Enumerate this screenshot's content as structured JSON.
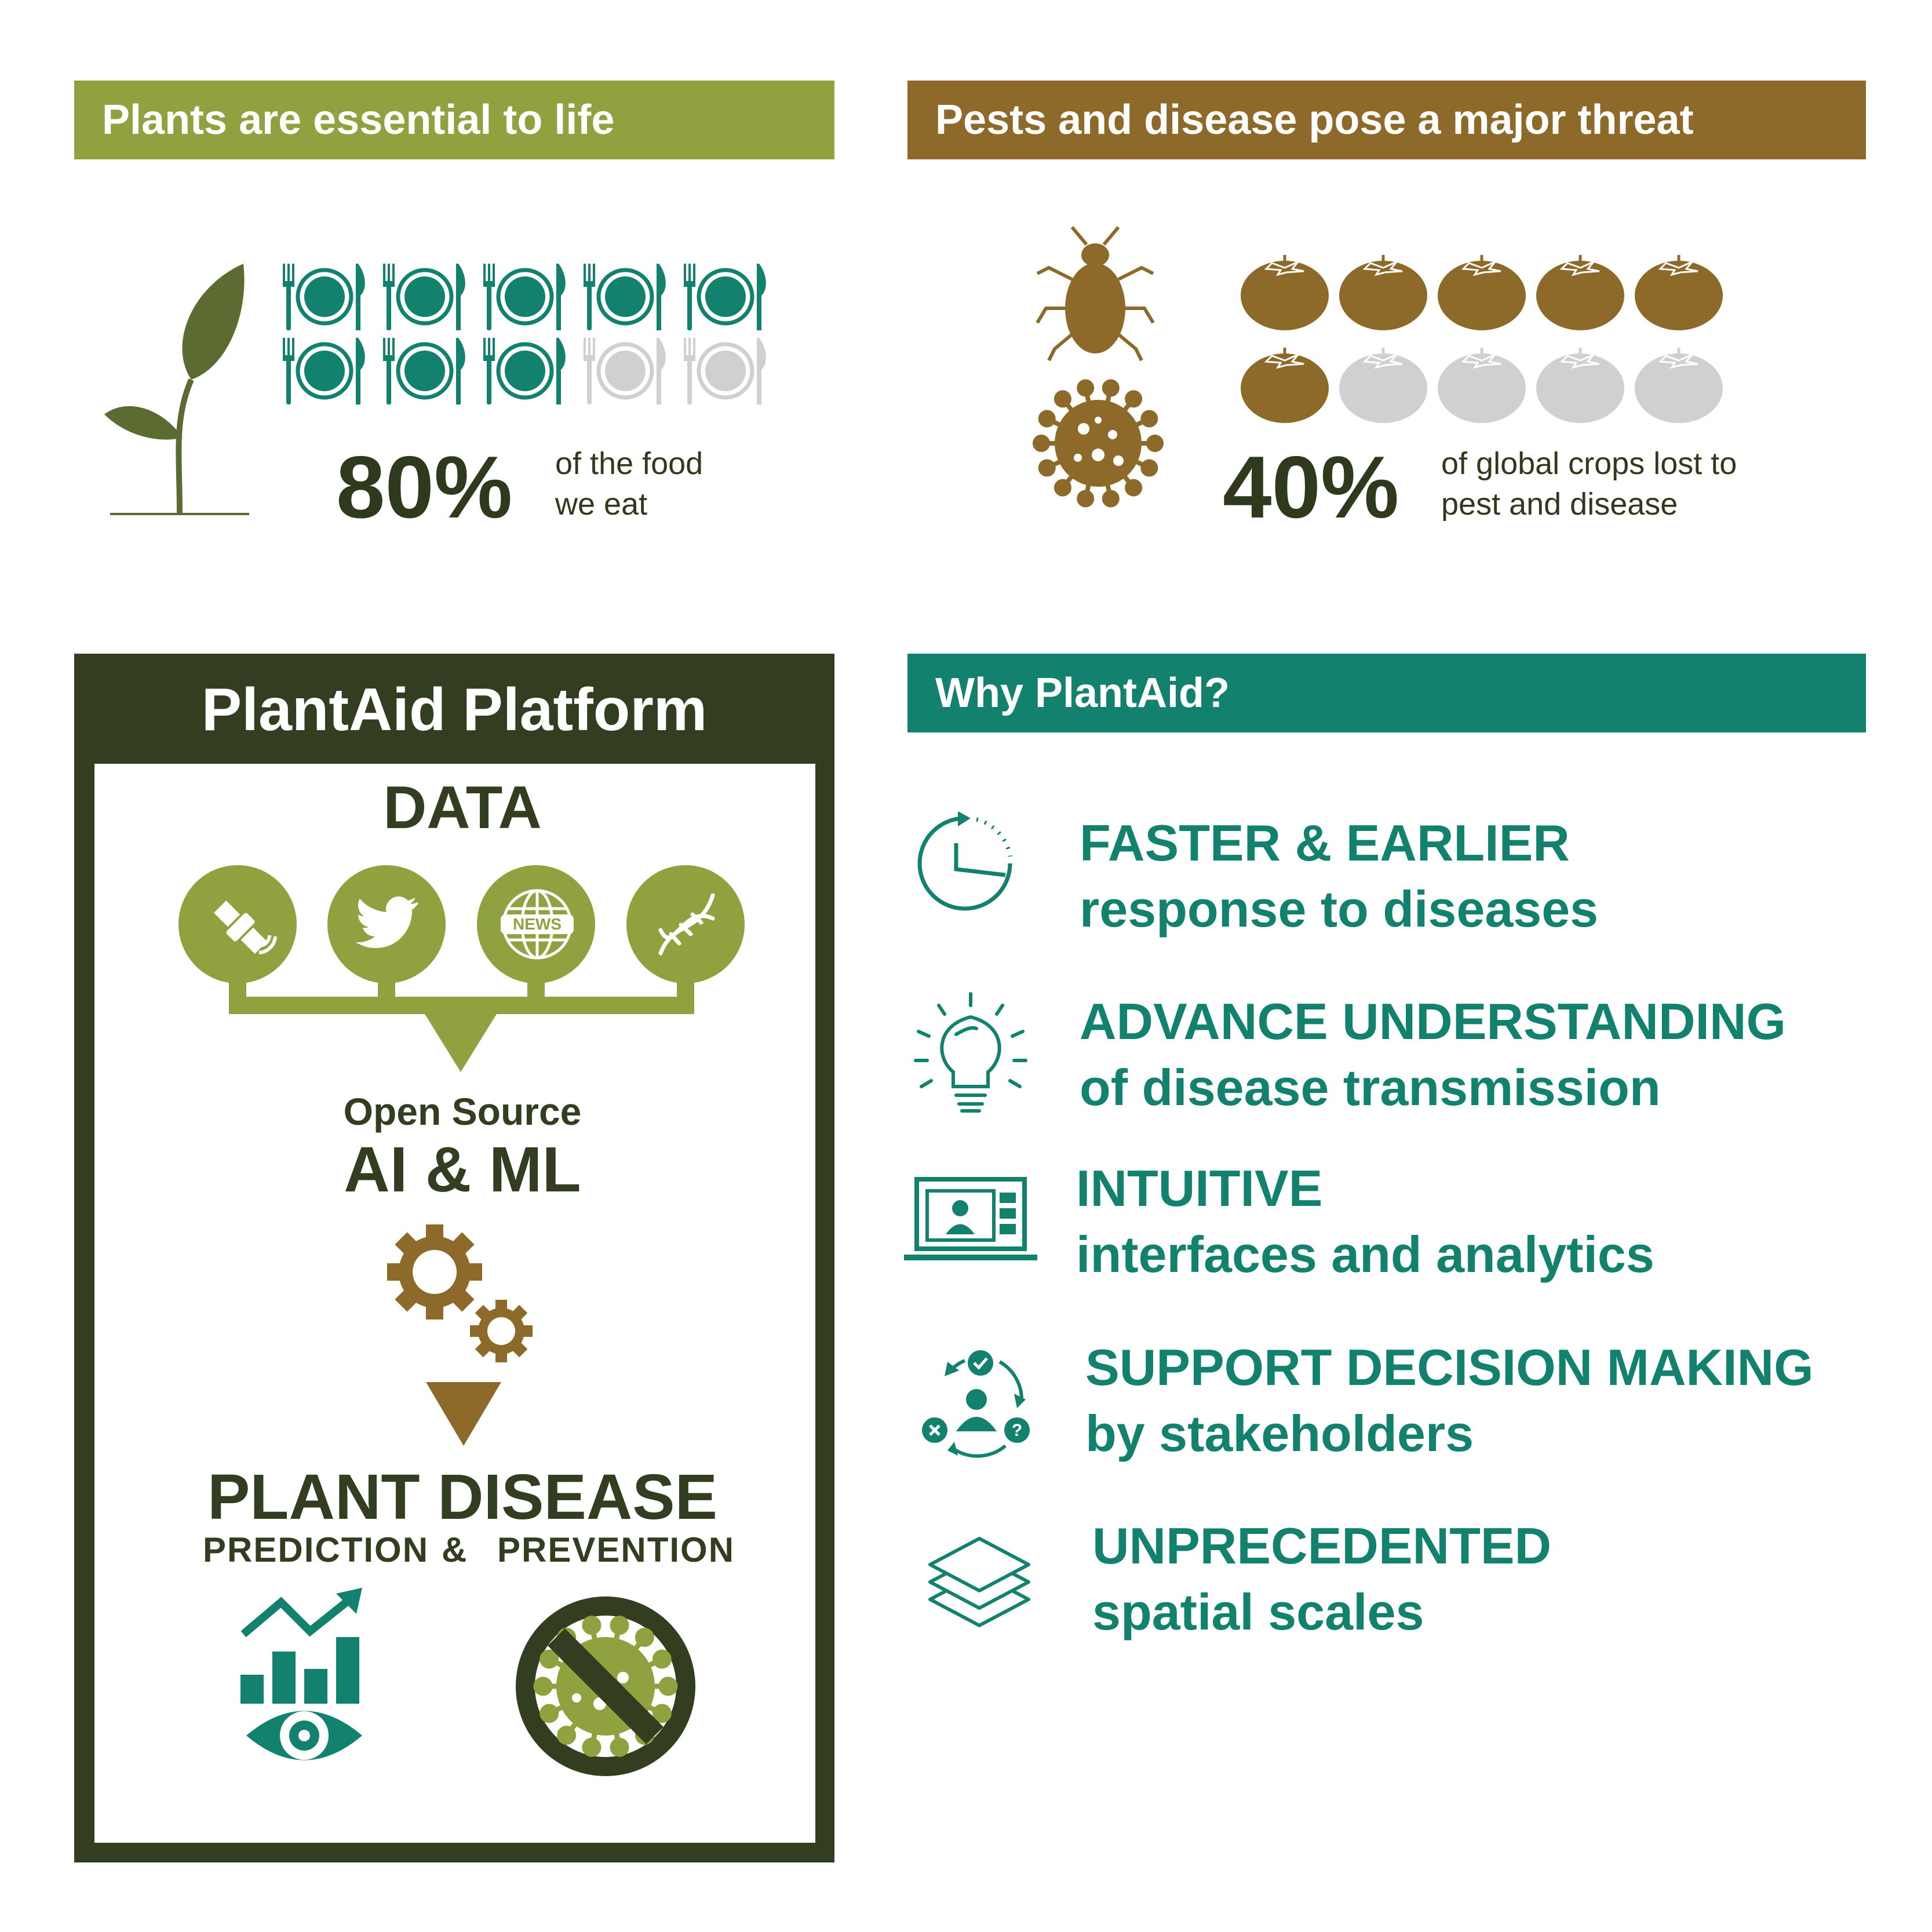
{
  "panel1": {
    "banner": "Plants are essential to life",
    "percent": "80%",
    "caption_line1": "of the food",
    "caption_line2": "we eat",
    "icon_plant": "seedling-icon",
    "icon_plate": "plate-fork-knife-icon",
    "plates_total": 10,
    "plates_filled": 8
  },
  "panel2": {
    "banner": "Pests and disease pose a major threat",
    "percent": "40%",
    "caption_line1": "of global crops lost to",
    "caption_line2": "pest and disease",
    "icon_bug": "bug-icon",
    "icon_virus": "virus-icon",
    "icon_tomato": "tomato-icon",
    "tomatoes_total": 10,
    "tomatoes_filled": 6
  },
  "platform": {
    "title": "PlantAid Platform",
    "data_label": "DATA",
    "sources": [
      "satellite-icon",
      "twitter-bird-icon",
      "news-globe-icon",
      "dna-icon"
    ],
    "news_text": "NEWS",
    "open_source": "Open Source",
    "ai_ml": "AI & ML",
    "plant_disease": "PLANT DISEASE",
    "prediction": "PREDICTION",
    "amp": "&",
    "prevention": "PREVENTION"
  },
  "why": {
    "banner": "Why PlantAid?",
    "items": [
      {
        "icon": "clock-refresh-icon",
        "heading": "FASTER & EARLIER",
        "sub": "response to diseases"
      },
      {
        "icon": "lightbulb-icon",
        "heading": "ADVANCE UNDERSTANDING",
        "sub": "of disease transmission"
      },
      {
        "icon": "laptop-dashboard-icon",
        "heading": "INTUITIVE",
        "sub": "interfaces and analytics"
      },
      {
        "icon": "decision-cycle-icon",
        "heading": "SUPPORT DECISION MAKING",
        "sub": "by stakeholders"
      },
      {
        "icon": "layers-icon",
        "heading": "UNPRECEDENTED",
        "sub": "spatial scales"
      }
    ]
  },
  "colors": {
    "olive": "#8fa23f",
    "brown": "#8e6a2a",
    "teal": "#12826f",
    "dark": "#333d1f",
    "grey": "#d0d0d0"
  }
}
